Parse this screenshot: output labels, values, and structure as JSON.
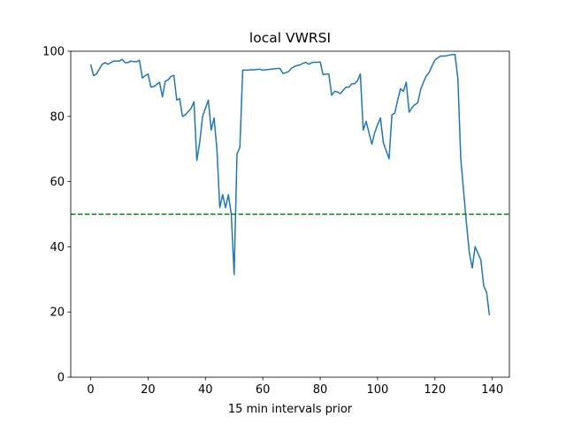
{
  "chart_data": {
    "type": "line",
    "title": "local VWRSI",
    "xlabel": "15 min intervals prior",
    "x": [
      0,
      1,
      2,
      3,
      4,
      5,
      6,
      7,
      8,
      9,
      10,
      11,
      12,
      13,
      14,
      15,
      16,
      17,
      18,
      19,
      20,
      21,
      22,
      23,
      24,
      25,
      26,
      27,
      28,
      29,
      30,
      31,
      32,
      33,
      34,
      35,
      36,
      37,
      38,
      39,
      40,
      41,
      42,
      43,
      44,
      45,
      46,
      47,
      48,
      49,
      50,
      51,
      52,
      53,
      54,
      55,
      56,
      57,
      58,
      59,
      60,
      61,
      62,
      63,
      64,
      65,
      66,
      67,
      68,
      69,
      70,
      71,
      72,
      73,
      74,
      75,
      76,
      77,
      78,
      79,
      80,
      81,
      82,
      83,
      84,
      85,
      86,
      87,
      88,
      89,
      90,
      91,
      92,
      93,
      94,
      95,
      96,
      97,
      98,
      99,
      100,
      101,
      102,
      103,
      104,
      105,
      106,
      107,
      108,
      109,
      110,
      111,
      112,
      113,
      114,
      115,
      116,
      117,
      118,
      119,
      120,
      121,
      122,
      123,
      124,
      125,
      126,
      127,
      128,
      129,
      130,
      131,
      132,
      133,
      134,
      135,
      136,
      137,
      138,
      139
    ],
    "series": [
      {
        "color": "#1f77b4",
        "values": [
          96,
          92.5,
          93,
          94.5,
          96,
          96.5,
          96,
          96.5,
          97,
          97,
          97,
          97.5,
          96.5,
          96.5,
          97,
          96.8,
          96.8,
          97.2,
          91.8,
          92.5,
          93,
          89,
          89.2,
          89.8,
          90.5,
          86,
          90.8,
          91.2,
          92.3,
          92.6,
          85,
          85.5,
          80,
          80.5,
          81.5,
          82.5,
          84.5,
          66.5,
          72,
          80,
          82.5,
          85,
          75.8,
          79.5,
          70,
          52,
          56,
          52,
          56,
          50,
          31.5,
          68.5,
          70.5,
          94.2,
          94.2,
          94.2,
          94.3,
          94.3,
          94.4,
          94.5,
          94.2,
          94.3,
          94.4,
          94.5,
          94.6,
          94.7,
          94.7,
          93.2,
          93.4,
          93.8,
          94.8,
          95.3,
          95.6,
          95.8,
          96.3,
          96.6,
          96,
          96.5,
          96.6,
          96.6,
          96.7,
          92.8,
          93,
          93,
          86.5,
          87.7,
          87.5,
          87,
          88,
          89,
          89,
          90,
          90,
          91,
          93,
          75.8,
          78.5,
          75,
          71.5,
          75,
          77.5,
          79.5,
          72,
          69.5,
          67,
          80.5,
          81,
          85,
          88.5,
          87.7,
          90.5,
          81.3,
          82.7,
          83.6,
          84.2,
          88.2,
          90.5,
          92.5,
          93.5,
          95.5,
          97.3,
          98,
          98.5,
          98.5,
          98.6,
          98.8,
          99,
          99,
          91.5,
          67,
          57,
          47,
          38,
          33.5,
          40,
          38,
          36,
          28,
          26,
          19
        ]
      }
    ],
    "hline": {
      "y": 50,
      "color": "#008000",
      "style": "dashed"
    },
    "xlim": [
      -6.95,
      145.95
    ],
    "ylim": [
      0,
      100
    ],
    "xticks": [
      0,
      20,
      40,
      60,
      80,
      100,
      120,
      140
    ],
    "yticks": [
      0,
      20,
      40,
      60,
      80,
      100
    ]
  }
}
